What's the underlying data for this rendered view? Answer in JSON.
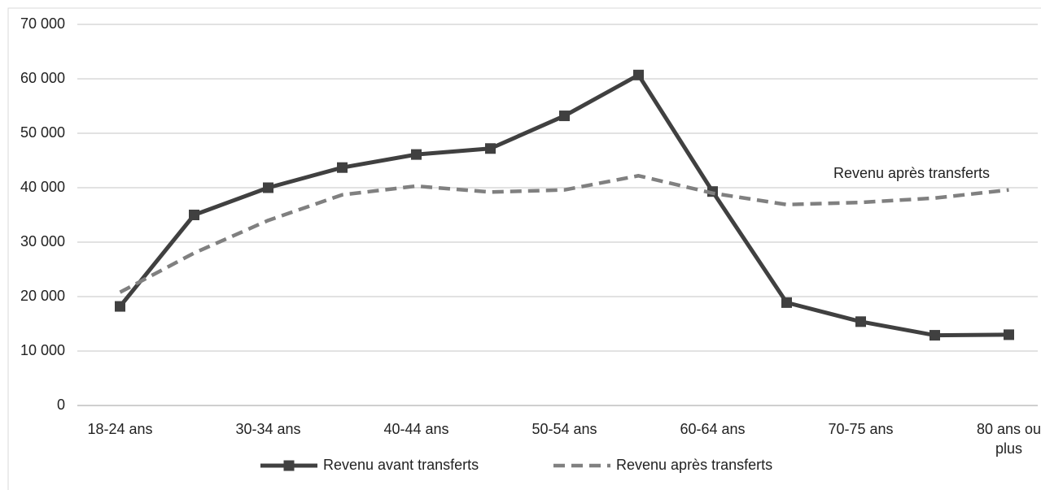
{
  "chart_data": {
    "type": "line",
    "categories": [
      "18-24 ans",
      null,
      "30-34 ans",
      null,
      "40-44 ans",
      null,
      "50-54 ans",
      null,
      "60-64 ans",
      null,
      "70-75 ans",
      null,
      "80 ans ou plus"
    ],
    "series": [
      {
        "name": "Revenu avant transferts",
        "color": "#404040",
        "dash": false,
        "marker": "square",
        "values": [
          18200,
          35000,
          40000,
          43700,
          46100,
          47200,
          53200,
          60700,
          39300,
          18900,
          15400,
          12900,
          13000
        ]
      },
      {
        "name": "Revenu après transferts",
        "color": "#808080",
        "dash": true,
        "marker": "none",
        "values": [
          20800,
          28000,
          34000,
          38700,
          40300,
          39200,
          39600,
          42200,
          39000,
          36900,
          37300,
          38100,
          39600
        ]
      }
    ],
    "annotation": "Revenu après transferts",
    "ylim": [
      0,
      70000
    ],
    "yticks": [
      0,
      {
        "value": 10000,
        "label": "10 000"
      },
      {
        "value": 20000,
        "label": "20 000"
      },
      {
        "value": 30000,
        "label": "30 000"
      },
      {
        "value": 40000,
        "label": "40 000"
      },
      {
        "value": 50000,
        "label": "50 000"
      },
      {
        "value": 60000,
        "label": "60 000"
      },
      {
        "value": 70000,
        "label": "70 000"
      }
    ],
    "grid": true,
    "legend": "bottom"
  }
}
